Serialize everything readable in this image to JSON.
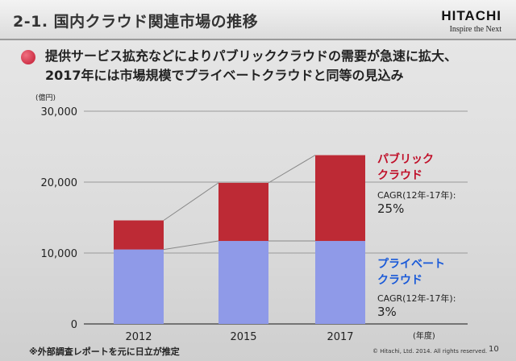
{
  "slide": {
    "title": "2-1. 国内クラウド関連市場の推移",
    "logo": {
      "main": "HITACHI",
      "sub": "Inspire the Next"
    },
    "bullet_lines": [
      "提供サービス拡充などによりパブリッククラウドの需要が急速に拡大、",
      "2017年には市場規模でプライベートクラウドと同等の見込み"
    ],
    "y_unit": "(億円)",
    "x_unit": "(年度)",
    "footnote": "※外部調査レポートを元に日立が推定",
    "copyright": "© Hitachi, Ltd. 2014. All rights reserved.",
    "page_number": "10"
  },
  "annotations": {
    "public": {
      "title_lines": [
        "パブリック",
        "クラウド"
      ],
      "cagr_label": "CAGR(12年-17年):",
      "cagr_value": "25%",
      "color": "#c0102a"
    },
    "private": {
      "title_lines": [
        "プライベート",
        "クラウド"
      ],
      "cagr_label": "CAGR(12年-17年):",
      "cagr_value": "3%",
      "color": "#1a5ad8"
    }
  },
  "chart_data": {
    "type": "bar",
    "stacked": true,
    "categories": [
      "2012",
      "2015",
      "2017"
    ],
    "series": [
      {
        "name": "プライベートクラウド",
        "values": [
          10500,
          11700,
          11700
        ],
        "color": "#8f9ae8"
      },
      {
        "name": "パブリッククラウド",
        "values": [
          4100,
          8200,
          12100
        ],
        "color": "#bd2a35"
      }
    ],
    "y_ticks": [
      "0",
      "10,000",
      "20,000",
      "30,000"
    ],
    "ylim": [
      0,
      30000
    ],
    "grid": true,
    "connector_lines": true
  }
}
